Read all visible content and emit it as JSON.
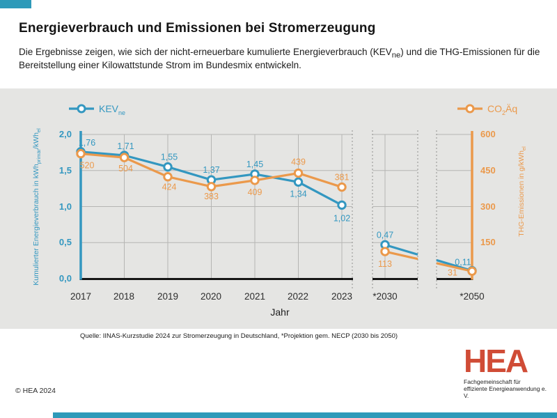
{
  "header": {
    "title": "Energieverbrauch und Emissionen bei Stromerzeugung",
    "subtitle_pre": "Die Ergebnisse zeigen, wie sich der nicht-erneuerbare kumulierte Energieverbrauch (KEV",
    "subtitle_sub": "ne",
    "subtitle_post": ") und die THG-Emissionen für die Bereitstellung einer Kilowattstunde Strom im Bundesmix entwickeln."
  },
  "legend": {
    "kev_main": "KEV",
    "kev_sub": "ne",
    "co2_pre": "CO",
    "co2_sub": "2",
    "co2_post": "Äq"
  },
  "axes": {
    "left_title_pre": "Kumulierter Energieverbrauch in kWh",
    "left_title_sub1": "primär",
    "left_title_mid": "/kWh",
    "left_title_sub2": "el",
    "right_title_pre": "THG-Emissionen in g/kWh",
    "right_title_sub": "el",
    "xlabel": "Jahr"
  },
  "chart_data": {
    "type": "line",
    "title": "Energieverbrauch und Emissionen bei Stromerzeugung",
    "xlabel": "Jahr",
    "categories": [
      "2017",
      "2018",
      "2019",
      "2020",
      "2021",
      "2022",
      "2023",
      "*2030",
      "*2050"
    ],
    "series": [
      {
        "name": "KEVne",
        "axis": "left",
        "color": "#3397c0",
        "values": [
          1.76,
          1.71,
          1.55,
          1.37,
          1.45,
          1.34,
          1.02,
          0.47,
          0.11
        ],
        "labels": [
          "1,76",
          "1,71",
          "1,55",
          "1,37",
          "1,45",
          "1,34",
          "1,02",
          "0,47",
          "0,11"
        ],
        "label_offsets": [
          [
            9,
            -9
          ],
          [
            2,
            -9
          ],
          [
            2,
            -10
          ],
          [
            0,
            -10
          ],
          [
            0,
            -10
          ],
          [
            0,
            21
          ],
          [
            0,
            23
          ],
          [
            0,
            -10
          ],
          [
            -13,
            -8
          ]
        ]
      },
      {
        "name": "CO2Äq",
        "axis": "right",
        "color": "#eb994b",
        "values": [
          520,
          504,
          424,
          383,
          409,
          439,
          381,
          113,
          31
        ],
        "labels": [
          "520",
          "504",
          "424",
          "383",
          "409",
          "439",
          "381",
          "113",
          "31"
        ],
        "label_offsets": [
          [
            9,
            21
          ],
          [
            2,
            20
          ],
          [
            2,
            19
          ],
          [
            0,
            18
          ],
          [
            0,
            21
          ],
          [
            0,
            -12
          ],
          [
            0,
            -10
          ],
          [
            0,
            22
          ],
          [
            -28,
            6
          ]
        ]
      }
    ],
    "left_ticks": [
      "2,0",
      "1,5",
      "1,0",
      "0,5",
      "0,0"
    ],
    "right_ticks": [
      "600",
      "450",
      "300",
      "150"
    ],
    "left_range": [
      0,
      2.0
    ],
    "right_range": [
      0,
      600
    ],
    "left_axis_label": "Kumulierter Energieverbrauch in kWhprimär/kWhel",
    "right_axis_label": "THG-Emissionen in g/kWhel",
    "grid": true,
    "legend_position": "top",
    "axis_breaks": "dashed vertical break lines after 2023 and between *2030 and *2050"
  },
  "source": "Quelle: IINAS-Kurzstudie 2024 zur Stromerzeugung in Deutschland, *Projektion gem. NECP (2030 bis 2050)",
  "footer": {
    "copyright": "© HEA 2024",
    "logo_text": "HEA",
    "logo_sub1": "Fachgemeinschaft für",
    "logo_sub2": "effiziente Energieanwendung e. V."
  },
  "colors": {
    "accent_teal": "#2e9ab9",
    "series_blue": "#3397c0",
    "series_orange": "#eb994b",
    "panel_gray": "#e5e5e3",
    "logo_red": "#d04c36"
  }
}
